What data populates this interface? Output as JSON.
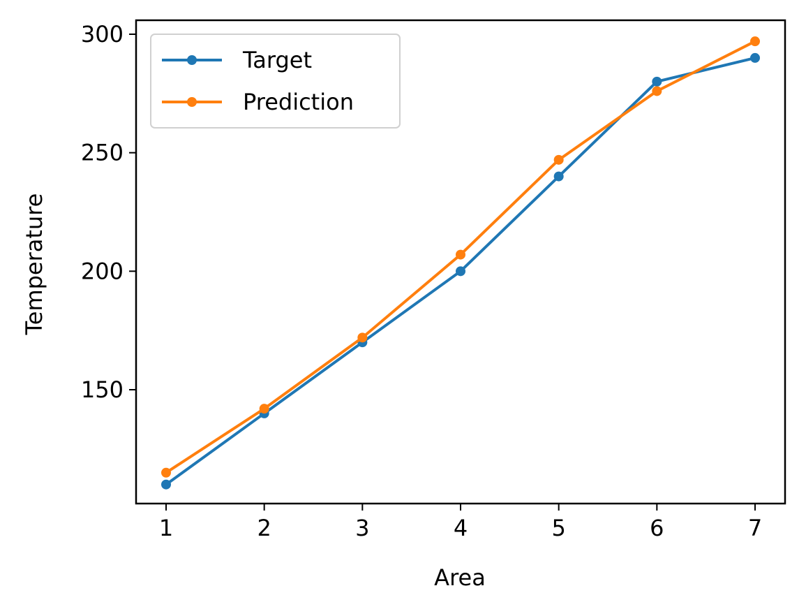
{
  "chart_data": {
    "type": "line",
    "title": "",
    "xlabel": "Area",
    "ylabel": "Temperature",
    "x": [
      1,
      2,
      3,
      4,
      5,
      6,
      7
    ],
    "xlim": [
      0.7,
      7.3
    ],
    "ylim": [
      100,
      305
    ],
    "xticks": [
      1,
      2,
      3,
      4,
      5,
      6,
      7
    ],
    "yticks": [
      150,
      200,
      250,
      300
    ],
    "grid": false,
    "legend_position": "top-left",
    "series": [
      {
        "name": "Target",
        "color": "#1f77b4",
        "marker": "circle",
        "values": [
          110,
          140,
          170,
          200,
          240,
          280,
          290
        ]
      },
      {
        "name": "Prediction",
        "color": "#ff7f0e",
        "marker": "circle",
        "values": [
          115,
          142,
          172,
          207,
          247,
          276,
          297
        ]
      }
    ]
  }
}
